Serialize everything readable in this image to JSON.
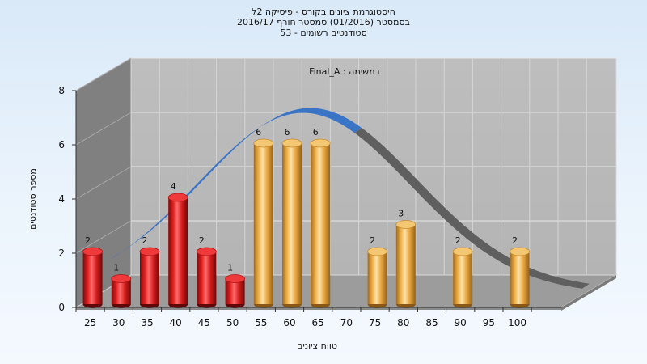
{
  "chart_data": {
    "type": "bar",
    "title": "היסטוגרמת ציונים בקורס - פיסיקה 2ל",
    "subtitle_lines": [
      "בסמסטר  (01/2016)  סמסטר חורף 2016/17",
      "סטודנטים רשומים - 53"
    ],
    "series_label": "במשימה : Final_A",
    "xlabel": "טווח ציונים",
    "ylabel": "מספר סטודנטים",
    "ylim": [
      0,
      8
    ],
    "yticks": [
      0,
      2,
      4,
      6,
      8
    ],
    "categories": [
      "25",
      "30",
      "35",
      "40",
      "45",
      "50",
      "55",
      "60",
      "65",
      "70",
      "75",
      "80",
      "85",
      "90",
      "95",
      "100"
    ],
    "values": [
      2,
      1,
      2,
      4,
      2,
      1,
      6,
      6,
      6,
      0,
      2,
      3,
      0,
      2,
      0,
      2
    ],
    "grid": true,
    "colors": {
      "fail": "#e3201f",
      "pass": "#eeb24a",
      "curve_front": "#3a74c7",
      "curve_back": "#5f5f5f",
      "back_wall": "#b9b9b9",
      "side_wall": "#7f7f7f",
      "floor": "#9b9b9b"
    }
  }
}
